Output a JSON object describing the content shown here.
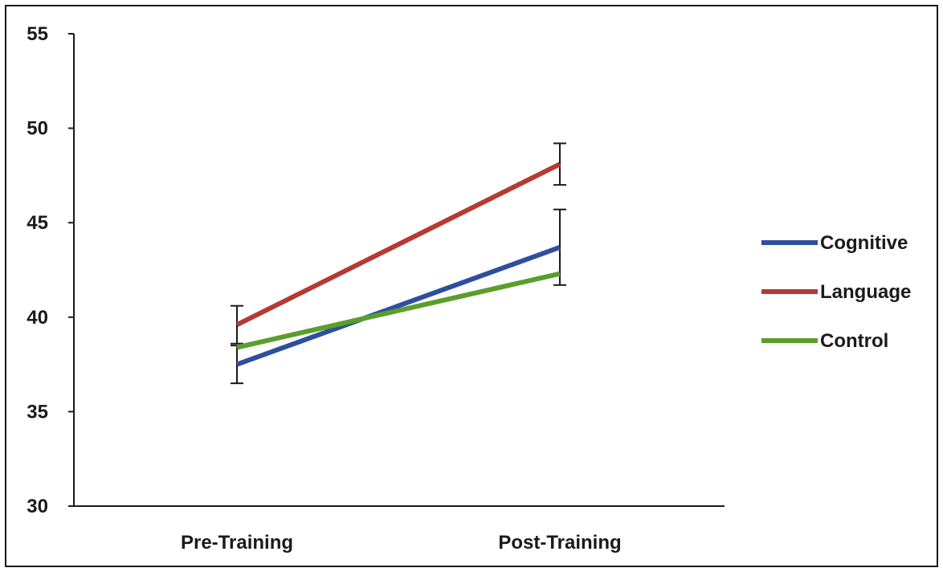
{
  "chart_data": {
    "type": "line",
    "categories": [
      "Pre-Training",
      "Post-Training"
    ],
    "series": [
      {
        "name": "Cognitive",
        "color": "#2e4f9e",
        "values": [
          37.5,
          43.7
        ],
        "error": [
          1.0,
          2.0
        ]
      },
      {
        "name": "Language",
        "color": "#b53a32",
        "values": [
          39.6,
          48.1
        ],
        "error": [
          1.0,
          1.1
        ]
      },
      {
        "name": "Control",
        "color": "#5a9e2c",
        "values": [
          38.4,
          42.3
        ],
        "error": [
          0.0,
          0.0
        ]
      }
    ],
    "ylim": [
      30,
      55
    ],
    "yticks": [
      30,
      35,
      40,
      45,
      50,
      55
    ],
    "grid": false,
    "legend_position": "right"
  }
}
